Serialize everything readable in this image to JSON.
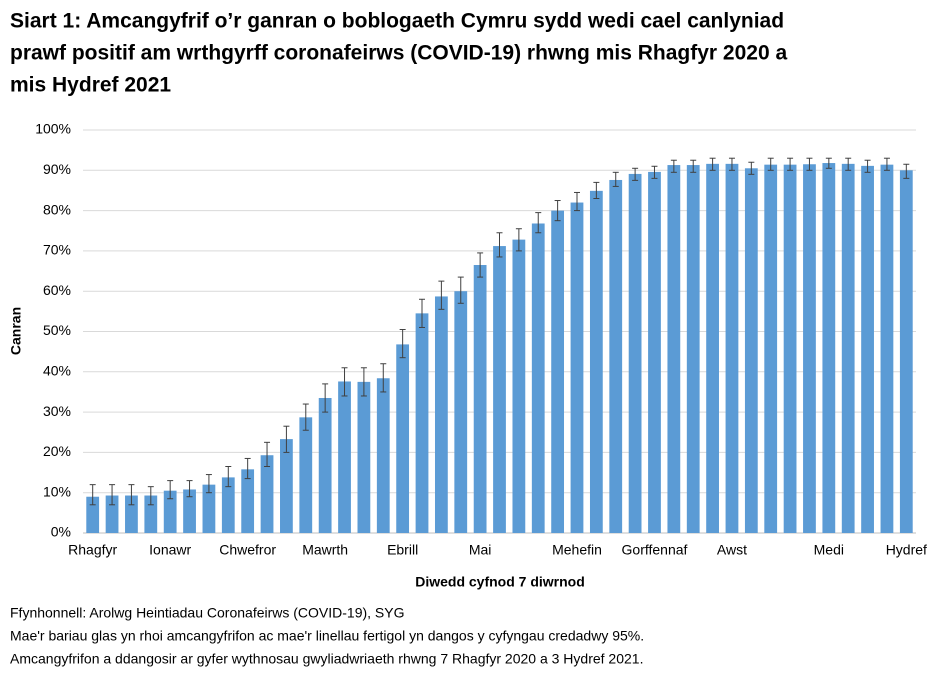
{
  "chart_data": {
    "type": "bar",
    "title_lines": [
      "Siart 1: Amcangyfrif o’r ganran o boblogaeth Cymru sydd wedi cael canlyniad",
      "prawf positif am wrthgyrff coronafeirws (COVID-19) rhwng mis Rhagfyr 2020 a",
      "mis Hydref 2021"
    ],
    "y_label": "Canran",
    "x_label": "Diwedd cyfnod 7 diwrnod",
    "categories": [
      "Rhagfyr",
      null,
      null,
      null,
      "Ionawr",
      null,
      null,
      null,
      "Chwefror",
      null,
      null,
      null,
      "Mawrth",
      null,
      null,
      null,
      "Ebrill",
      null,
      null,
      null,
      "Mai",
      null,
      null,
      null,
      null,
      "Mehefin",
      null,
      null,
      null,
      "Gorffennaf",
      null,
      null,
      null,
      "Awst",
      null,
      null,
      null,
      null,
      "Medi",
      null,
      null,
      null,
      "Hydref"
    ],
    "values": [
      9,
      9.3,
      9.3,
      9.3,
      10.5,
      10.8,
      12,
      13.8,
      15.8,
      19.3,
      23.3,
      28.7,
      33.5,
      37.6,
      37.5,
      38.4,
      46.8,
      54.5,
      58.7,
      60,
      66.5,
      71.2,
      72.8,
      76.8,
      80,
      82,
      84.9,
      87.6,
      89.1,
      89.6,
      91.3,
      91.3,
      91.6,
      91.6,
      90.5,
      91.4,
      91.4,
      91.5,
      91.8,
      91.6,
      91.1,
      91.4,
      90
    ],
    "ci_lower": [
      7,
      7,
      7,
      7,
      8.5,
      9,
      10,
      11.5,
      13.5,
      16.5,
      20,
      25.5,
      30,
      34,
      34,
      35,
      43.5,
      51,
      55.5,
      57,
      63.5,
      68.5,
      70,
      74.5,
      77.5,
      80,
      83,
      86,
      87.5,
      88,
      89.5,
      89.5,
      90,
      90,
      89,
      90,
      90,
      90,
      90.5,
      90,
      89.5,
      90,
      88
    ],
    "ci_upper": [
      12,
      12,
      12,
      11.5,
      13,
      13,
      14.5,
      16.5,
      18.5,
      22.5,
      26.5,
      32,
      37,
      41,
      41,
      42,
      50.5,
      58,
      62.5,
      63.5,
      69.5,
      74.5,
      75.5,
      79.5,
      82.5,
      84.5,
      87,
      89.5,
      90.5,
      91,
      92.5,
      92.5,
      93,
      93,
      92,
      93,
      93,
      93,
      93,
      93,
      92.5,
      93,
      91.5
    ],
    "color": "#5b9bd5",
    "error_color": "#404040",
    "ylim": [
      0,
      100
    ],
    "yticks": [
      {
        "value": 0,
        "label": "0%"
      },
      {
        "value": 10,
        "label": "10%"
      },
      {
        "value": 20,
        "label": "20%"
      },
      {
        "value": 30,
        "label": "30%"
      },
      {
        "value": 40,
        "label": "40%"
      },
      {
        "value": 50,
        "label": "50%"
      },
      {
        "value": 60,
        "label": "60%"
      },
      {
        "value": 70,
        "label": "70%"
      },
      {
        "value": 80,
        "label": "80%"
      },
      {
        "value": 90,
        "label": "90%"
      },
      {
        "value": 100,
        "label": "100%"
      }
    ],
    "grid": true,
    "notes": [
      "Ffynhonnell: Arolwg Heintiadau Coronafeirws (COVID-19), SYG",
      "Mae'r bariau glas yn rhoi amcangyfrifon ac mae'r linellau fertigol yn dangos y cyfyngau credadwy 95%.",
      "Amcangyfrifon a ddangosir ar gyfer wythnosau gwyliadwriaeth rhwng 7 Rhagfyr 2020 a 3 Hydref 2021."
    ]
  }
}
